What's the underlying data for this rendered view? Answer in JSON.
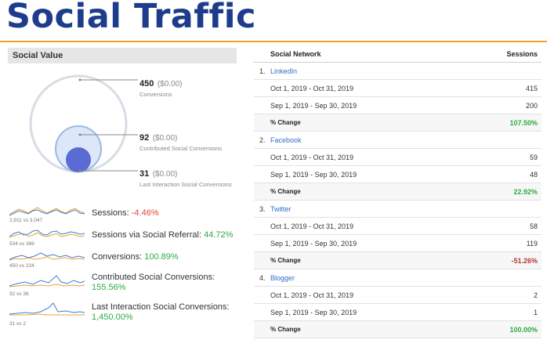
{
  "title": "Social Traffic",
  "social_value": {
    "header": "Social Value",
    "metrics": [
      {
        "value": "450",
        "money": "($0.00)",
        "label": "Conversions"
      },
      {
        "value": "92",
        "money": "($0.00)",
        "label": "Contributed Social Conversions"
      },
      {
        "value": "31",
        "money": "($0.00)",
        "label": "Last Interaction Social Conversions"
      }
    ]
  },
  "sparklines": [
    {
      "caption": "2,911 vs 3,047",
      "label": "Sessions:",
      "change": "-4.46%",
      "sign": "neg"
    },
    {
      "caption": "534 vs 369",
      "label": "Sessions via Social Referral:",
      "change": "44.72%",
      "sign": "pos"
    },
    {
      "caption": "450 vs 224",
      "label": "Conversions:",
      "change": "100.89%",
      "sign": "pos"
    },
    {
      "caption": "92 vs 36",
      "label": "Contributed Social Conversions:",
      "change": "155.56%",
      "sign": "pos"
    },
    {
      "caption": "31 vs 2",
      "label": "Last Interaction Social Conversions:",
      "change": "1,450.00%",
      "sign": "pos"
    }
  ],
  "colors": {
    "current": "#3a7fd0",
    "previous": "#f0a030",
    "title": "#1e3c8c",
    "positive": "#2eaa44",
    "negative": "#e0463a"
  },
  "table": {
    "headers": [
      "Social Network",
      "Sessions"
    ],
    "networks": [
      {
        "num": "1.",
        "name": "LinkedIn",
        "rows": [
          {
            "period": "Oct 1, 2019 - Oct 31, 2019",
            "sessions": "415"
          },
          {
            "period": "Sep 1, 2019 - Sep 30, 2019",
            "sessions": "200"
          }
        ],
        "change_label": "% Change",
        "change": "107.50%"
      },
      {
        "num": "2.",
        "name": "Facebook",
        "rows": [
          {
            "period": "Oct 1, 2019 - Oct 31, 2019",
            "sessions": "59"
          },
          {
            "period": "Sep 1, 2019 - Sep 30, 2019",
            "sessions": "48"
          }
        ],
        "change_label": "% Change",
        "change": "22.92%"
      },
      {
        "num": "3.",
        "name": "Twitter",
        "rows": [
          {
            "period": "Oct 1, 2019 - Oct 31, 2019",
            "sessions": "58"
          },
          {
            "period": "Sep 1, 2019 - Sep 30, 2019",
            "sessions": "119"
          }
        ],
        "change_label": "% Change",
        "change": "-51.26%"
      },
      {
        "num": "4.",
        "name": "Blogger",
        "rows": [
          {
            "period": "Oct 1, 2019 - Oct 31, 2019",
            "sessions": "2"
          },
          {
            "period": "Sep 1, 2019 - Sep 30, 2019",
            "sessions": "1"
          }
        ],
        "change_label": "% Change",
        "change": "100.00%"
      }
    ]
  }
}
